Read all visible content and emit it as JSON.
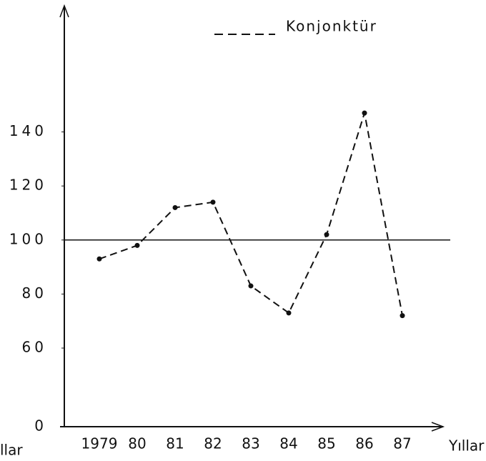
{
  "chart_data": {
    "type": "line",
    "categories": [
      "1979",
      "80",
      "81",
      "82",
      "83",
      "84",
      "85",
      "86",
      "87"
    ],
    "series": [
      {
        "name": "Konjonktür",
        "color": "#111111",
        "values": [
          93,
          98,
          112,
          114,
          83,
          73,
          102,
          147,
          72
        ]
      }
    ],
    "x_label": "Yıllar",
    "y_label": "llar",
    "ylim": [
      0,
      160
    ],
    "yticks": [
      0,
      60,
      80,
      100,
      120,
      140
    ],
    "ybreak": [
      0,
      60
    ],
    "reference_line": 100,
    "legend": "top-right",
    "dashed": true
  }
}
